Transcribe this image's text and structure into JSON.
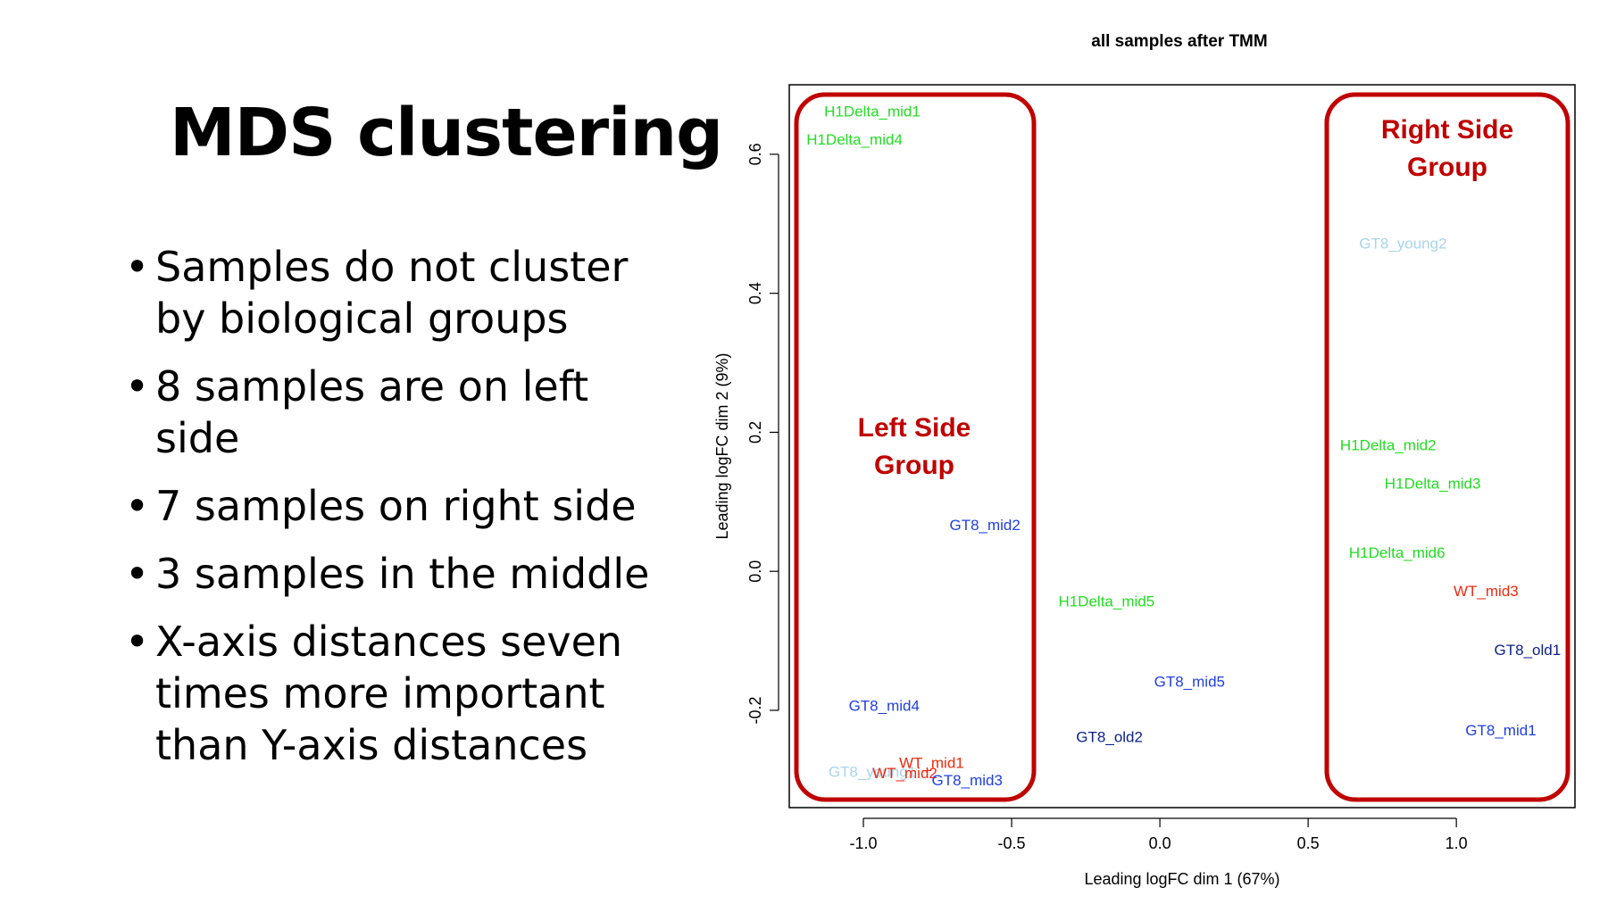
{
  "slide": {
    "title": "MDS clustering",
    "bullets": [
      "Samples do not cluster by biological groups",
      "8 samples are on left side",
      "7 samples on right side",
      "3 samples in the middle",
      "X-axis distances seven times more important than Y-axis distances"
    ]
  },
  "chart_data": {
    "type": "scatter",
    "title": "all samples after TMM",
    "xlabel": "Leading logFC dim 1 (67%)",
    "ylabel": "Leading logFC dim 2 (9%)",
    "xlim": [
      -1.25,
      1.4
    ],
    "ylim": [
      -0.34,
      0.7
    ],
    "xticks": [
      -1.0,
      -0.5,
      0.0,
      0.5,
      1.0
    ],
    "xtick_labels": [
      "-1.0",
      "-0.5",
      "0.0",
      "0.5",
      "1.0"
    ],
    "yticks": [
      -0.2,
      0.0,
      0.2,
      0.4,
      0.6
    ],
    "ytick_labels": [
      "-0.2",
      "0.0",
      "0.2",
      "0.4",
      "0.6"
    ],
    "colors": {
      "H1Delta": "#22dd22",
      "GT8_mid": "#1f3fe0",
      "GT8_old": "#0a1f8a",
      "GT8_young": "#a8d4ec",
      "WT": "#ee2a10",
      "annotation": "#c00000"
    },
    "points": [
      {
        "label": "H1Delta_mid1",
        "x": -0.97,
        "y": 0.66,
        "color": "#22dd22"
      },
      {
        "label": "H1Delta_mid4",
        "x": -1.03,
        "y": 0.62,
        "color": "#22dd22"
      },
      {
        "label": "GT8_young2",
        "x": 0.82,
        "y": 0.47,
        "color": "#a8d4ec"
      },
      {
        "label": "H1Delta_mid2",
        "x": 0.77,
        "y": 0.18,
        "color": "#22dd22"
      },
      {
        "label": "H1Delta_mid3",
        "x": 0.92,
        "y": 0.125,
        "color": "#22dd22"
      },
      {
        "label": "GT8_mid2",
        "x": -0.59,
        "y": 0.065,
        "color": "#1f3fe0"
      },
      {
        "label": "H1Delta_mid6",
        "x": 0.8,
        "y": 0.025,
        "color": "#22dd22"
      },
      {
        "label": "WT_mid3",
        "x": 1.1,
        "y": -0.03,
        "color": "#ee2a10"
      },
      {
        "label": "H1Delta_mid5",
        "x": -0.18,
        "y": -0.045,
        "color": "#22dd22"
      },
      {
        "label": "GT8_old1",
        "x": 1.24,
        "y": -0.115,
        "color": "#0a1f8a"
      },
      {
        "label": "GT8_mid5",
        "x": 0.1,
        "y": -0.16,
        "color": "#1f3fe0"
      },
      {
        "label": "GT8_mid4",
        "x": -0.93,
        "y": -0.195,
        "color": "#1f3fe0"
      },
      {
        "label": "GT8_mid1",
        "x": 1.15,
        "y": -0.23,
        "color": "#1f3fe0"
      },
      {
        "label": "GT8_old2",
        "x": -0.17,
        "y": -0.24,
        "color": "#0a1f8a"
      },
      {
        "label": "GT8_young1",
        "x": -0.97,
        "y": -0.29,
        "color": "#a8d4ec"
      },
      {
        "label": "WT_mid2",
        "x": -0.86,
        "y": -0.292,
        "color": "#ee2a10"
      },
      {
        "label": "WT_mid1",
        "x": -0.77,
        "y": -0.277,
        "color": "#ee2a10"
      },
      {
        "label": "GT8_mid3",
        "x": -0.65,
        "y": -0.302,
        "color": "#1f3fe0"
      }
    ],
    "annotations": [
      {
        "text_lines": [
          "Left Side",
          "Group"
        ]
      },
      {
        "text_lines": [
          "Right Side",
          "Group"
        ]
      }
    ]
  }
}
